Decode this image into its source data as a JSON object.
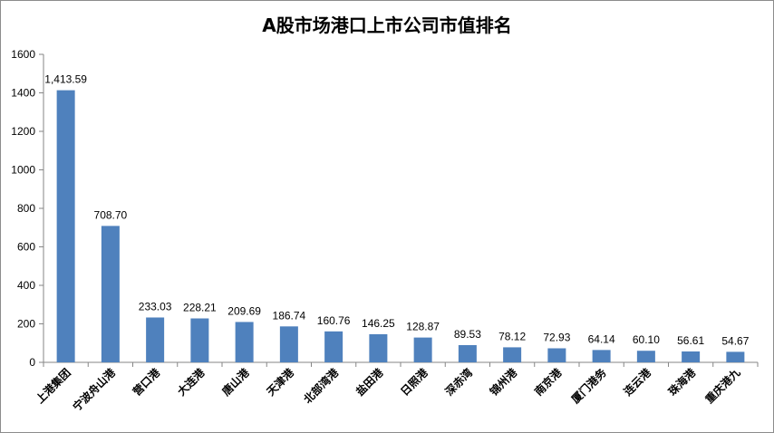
{
  "chart_data": {
    "type": "bar",
    "title": "A股市场港口上市公司市值排名",
    "xlabel": "",
    "ylabel": "",
    "ylim": [
      0,
      1600
    ],
    "yticks": [
      0,
      200,
      400,
      600,
      800,
      1000,
      1200,
      1400,
      1600
    ],
    "grid": false,
    "legend": "none",
    "bar_color": "#4f81bd",
    "categories": [
      "上港集团",
      "宁波舟山港",
      "营口港",
      "大连港",
      "唐山港",
      "天津港",
      "北部湾港",
      "盐田港",
      "日照港",
      "深赤湾",
      "锦州港",
      "南京港",
      "厦门港务",
      "连云港",
      "珠海港",
      "重庆港九"
    ],
    "values": [
      1413.59,
      708.7,
      233.03,
      228.21,
      209.69,
      186.74,
      160.76,
      146.25,
      128.87,
      89.53,
      78.12,
      72.93,
      64.14,
      60.1,
      56.61,
      54.67
    ],
    "data_labels": [
      "1,413.59",
      "708.70",
      "233.03",
      "228.21",
      "209.69",
      "186.74",
      "160.76",
      "146.25",
      "128.87",
      "89.53",
      "78.12",
      "72.93",
      "64.14",
      "60.10",
      "56.61",
      "54.67"
    ]
  }
}
